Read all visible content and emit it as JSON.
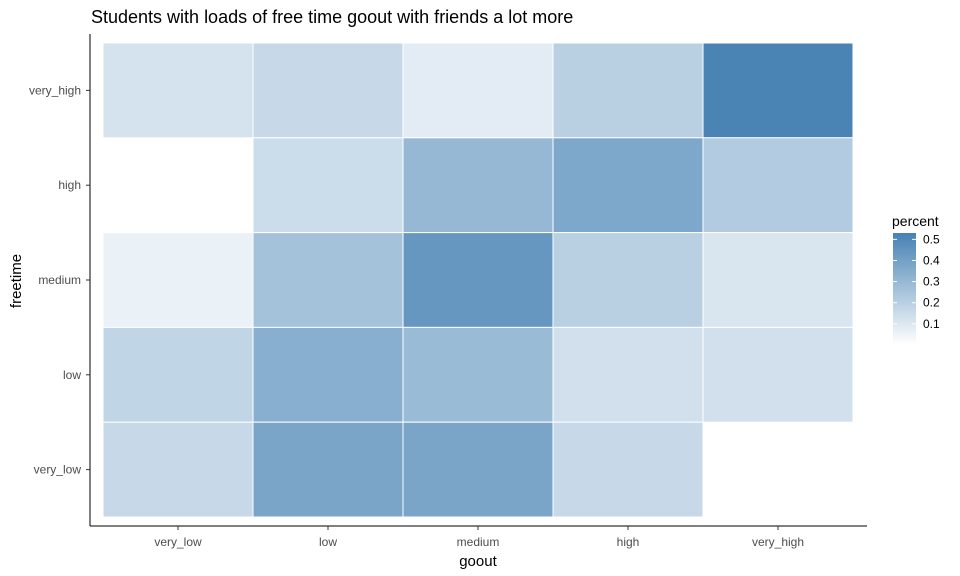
{
  "chart_data": {
    "type": "heatmap",
    "title": "Students with loads of free time goout with friends a lot more",
    "xlabel": "goout",
    "ylabel": "freetime",
    "x_categories": [
      "very_low",
      "low",
      "medium",
      "high",
      "very_high"
    ],
    "y_categories": [
      "very_low",
      "low",
      "medium",
      "high",
      "very_high"
    ],
    "cells": [
      {
        "x": "very_low",
        "y": "very_high",
        "value": 0.12
      },
      {
        "x": "low",
        "y": "very_high",
        "value": 0.16
      },
      {
        "x": "medium",
        "y": "very_high",
        "value": 0.08
      },
      {
        "x": "high",
        "y": "very_high",
        "value": 0.2
      },
      {
        "x": "very_high",
        "y": "very_high",
        "value": 0.52
      },
      {
        "x": "low",
        "y": "high",
        "value": 0.15
      },
      {
        "x": "medium",
        "y": "high",
        "value": 0.3
      },
      {
        "x": "high",
        "y": "high",
        "value": 0.37
      },
      {
        "x": "very_high",
        "y": "high",
        "value": 0.22
      },
      {
        "x": "very_low",
        "y": "medium",
        "value": 0.06
      },
      {
        "x": "low",
        "y": "medium",
        "value": 0.26
      },
      {
        "x": "medium",
        "y": "medium",
        "value": 0.44
      },
      {
        "x": "high",
        "y": "medium",
        "value": 0.2
      },
      {
        "x": "very_high",
        "y": "medium",
        "value": 0.11
      },
      {
        "x": "very_low",
        "y": "low",
        "value": 0.18
      },
      {
        "x": "low",
        "y": "low",
        "value": 0.34
      },
      {
        "x": "medium",
        "y": "low",
        "value": 0.29
      },
      {
        "x": "high",
        "y": "low",
        "value": 0.13
      },
      {
        "x": "very_high",
        "y": "low",
        "value": 0.13
      },
      {
        "x": "very_low",
        "y": "very_low",
        "value": 0.16
      },
      {
        "x": "low",
        "y": "very_low",
        "value": 0.38
      },
      {
        "x": "medium",
        "y": "very_low",
        "value": 0.38
      },
      {
        "x": "high",
        "y": "very_low",
        "value": 0.16
      }
    ],
    "color_scale": {
      "low_color": "#ffffff",
      "high_color": "#4682b4",
      "min": 0,
      "max": 0.53
    },
    "legend": {
      "title": "percent",
      "ticks": [
        0.1,
        0.2,
        0.3,
        0.4,
        0.5
      ],
      "tick_labels": [
        "0.1",
        "0.2",
        "0.3",
        "0.4",
        "0.5"
      ],
      "position": "right"
    },
    "grid": false
  }
}
